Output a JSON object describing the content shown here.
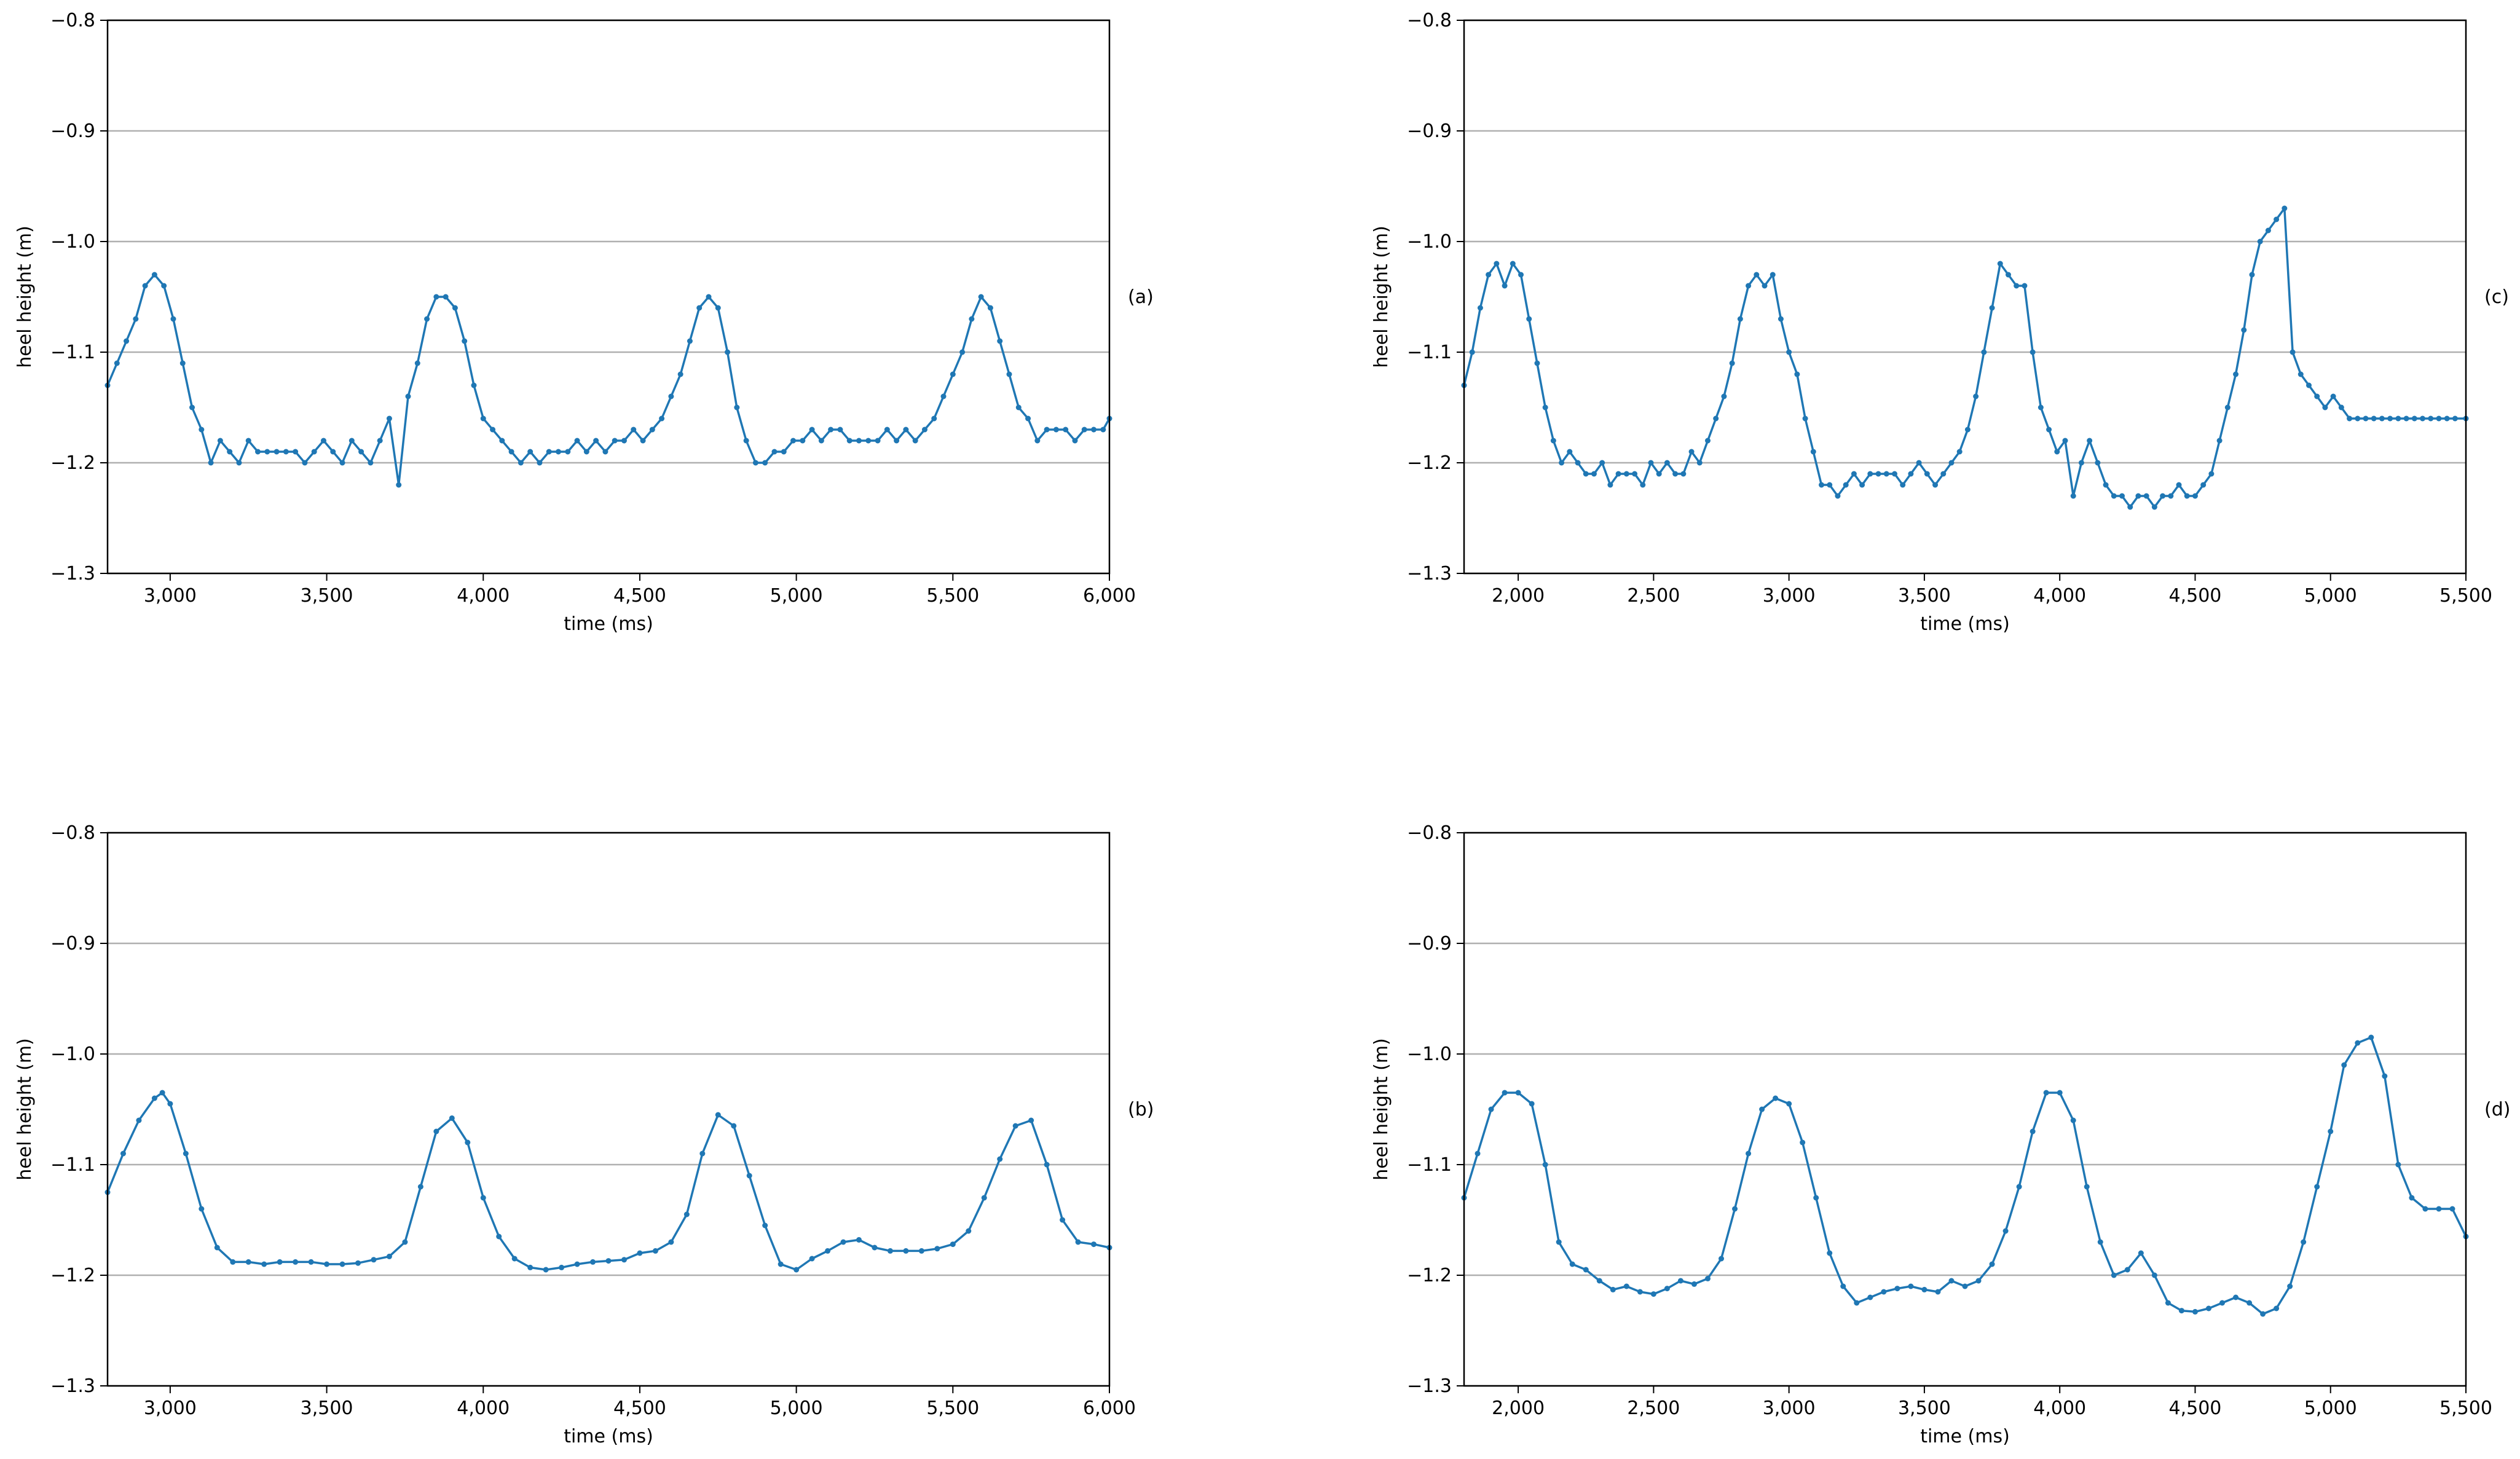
{
  "chart_data": [
    {
      "panel": "(a)",
      "type": "line",
      "xlabel": "time (ms)",
      "ylabel": "heel height (m)",
      "xlim": [
        2800,
        6000
      ],
      "ylim": [
        -1.3,
        -0.8
      ],
      "xticks": [
        3000,
        3500,
        4000,
        4500,
        5000,
        5500,
        6000
      ],
      "xtick_labels": [
        "3,000",
        "3,500",
        "4,000",
        "4,500",
        "5,000",
        "5,500",
        "6,000"
      ],
      "yticks": [
        -1.3,
        -1.2,
        -1.1,
        -1.0,
        -0.9,
        -0.8
      ],
      "ytick_labels": [
        "−1.3",
        "−1.2",
        "−1.1",
        "−1.0",
        "−0.9",
        "−0.8"
      ],
      "grid": "horizontal",
      "markers": true,
      "line_color": "#1f77b4",
      "series": [
        {
          "x": [
            2800,
            2830,
            2860,
            2890,
            2920,
            2950,
            2980,
            3010,
            3040,
            3070,
            3100,
            3130,
            3160,
            3190,
            3220,
            3250,
            3280,
            3310,
            3340,
            3370,
            3400,
            3430,
            3460,
            3490,
            3520,
            3550,
            3580,
            3610,
            3640,
            3670,
            3700,
            3730,
            3760,
            3790,
            3820,
            3850,
            3880,
            3910,
            3940,
            3970,
            4000,
            4030,
            4060,
            4090,
            4120,
            4150,
            4180,
            4210,
            4240,
            4270,
            4300,
            4330,
            4360,
            4390,
            4420,
            4450,
            4480,
            4510,
            4540,
            4570,
            4600,
            4630,
            4660,
            4690,
            4720,
            4750,
            4780,
            4810,
            4840,
            4870,
            4900,
            4930,
            4960,
            4990,
            5020,
            5050,
            5080,
            5110,
            5140,
            5170,
            5200,
            5230,
            5260,
            5290,
            5320,
            5350,
            5380,
            5410,
            5440,
            5470,
            5500,
            5530,
            5560,
            5590,
            5620,
            5650,
            5680,
            5710,
            5740,
            5770,
            5800,
            5830,
            5860,
            5890,
            5920,
            5950,
            5980,
            6000
          ],
          "y": [
            -1.13,
            -1.11,
            -1.09,
            -1.07,
            -1.04,
            -1.03,
            -1.04,
            -1.07,
            -1.11,
            -1.15,
            -1.17,
            -1.2,
            -1.18,
            -1.19,
            -1.2,
            -1.18,
            -1.19,
            -1.19,
            -1.19,
            -1.19,
            -1.19,
            -1.2,
            -1.19,
            -1.18,
            -1.19,
            -1.2,
            -1.18,
            -1.19,
            -1.2,
            -1.18,
            -1.16,
            -1.22,
            -1.14,
            -1.11,
            -1.07,
            -1.05,
            -1.05,
            -1.06,
            -1.09,
            -1.13,
            -1.16,
            -1.17,
            -1.18,
            -1.19,
            -1.2,
            -1.19,
            -1.2,
            -1.19,
            -1.19,
            -1.19,
            -1.18,
            -1.19,
            -1.18,
            -1.19,
            -1.18,
            -1.18,
            -1.17,
            -1.18,
            -1.17,
            -1.16,
            -1.14,
            -1.12,
            -1.09,
            -1.06,
            -1.05,
            -1.06,
            -1.1,
            -1.15,
            -1.18,
            -1.2,
            -1.2,
            -1.19,
            -1.19,
            -1.18,
            -1.18,
            -1.17,
            -1.18,
            -1.17,
            -1.17,
            -1.18,
            -1.18,
            -1.18,
            -1.18,
            -1.17,
            -1.18,
            -1.17,
            -1.18,
            -1.17,
            -1.16,
            -1.14,
            -1.12,
            -1.1,
            -1.07,
            -1.05,
            -1.06,
            -1.09,
            -1.12,
            -1.15,
            -1.16,
            -1.18,
            -1.17,
            -1.17,
            -1.17,
            -1.18,
            -1.17,
            -1.17,
            -1.17,
            -1.16
          ]
        }
      ]
    },
    {
      "panel": "(b)",
      "type": "line",
      "xlabel": "time (ms)",
      "ylabel": "heel height (m)",
      "xlim": [
        2800,
        6000
      ],
      "ylim": [
        -1.3,
        -0.8
      ],
      "xticks": [
        3000,
        3500,
        4000,
        4500,
        5000,
        5500,
        6000
      ],
      "xtick_labels": [
        "3,000",
        "3,500",
        "4,000",
        "4,500",
        "5,000",
        "5,500",
        "6,000"
      ],
      "yticks": [
        -1.3,
        -1.2,
        -1.1,
        -1.0,
        -0.9,
        -0.8
      ],
      "ytick_labels": [
        "−1.3",
        "−1.2",
        "−1.1",
        "−1.0",
        "−0.9",
        "−0.8"
      ],
      "grid": "horizontal",
      "markers": true,
      "line_color": "#1f77b4",
      "series": [
        {
          "x": [
            2800,
            2850,
            2900,
            2950,
            2975,
            3000,
            3050,
            3100,
            3150,
            3200,
            3250,
            3300,
            3350,
            3400,
            3450,
            3500,
            3550,
            3600,
            3650,
            3700,
            3750,
            3800,
            3850,
            3900,
            3950,
            4000,
            4050,
            4100,
            4150,
            4200,
            4250,
            4300,
            4350,
            4400,
            4450,
            4500,
            4550,
            4600,
            4650,
            4700,
            4750,
            4800,
            4850,
            4900,
            4950,
            5000,
            5050,
            5100,
            5150,
            5200,
            5250,
            5300,
            5350,
            5400,
            5450,
            5500,
            5550,
            5600,
            5650,
            5700,
            5750,
            5800,
            5850,
            5900,
            5950,
            6000
          ],
          "y": [
            -1.125,
            -1.09,
            -1.06,
            -1.04,
            -1.035,
            -1.045,
            -1.09,
            -1.14,
            -1.175,
            -1.188,
            -1.188,
            -1.19,
            -1.188,
            -1.188,
            -1.188,
            -1.19,
            -1.19,
            -1.189,
            -1.186,
            -1.183,
            -1.17,
            -1.12,
            -1.07,
            -1.058,
            -1.08,
            -1.13,
            -1.165,
            -1.185,
            -1.193,
            -1.195,
            -1.193,
            -1.19,
            -1.188,
            -1.187,
            -1.186,
            -1.18,
            -1.178,
            -1.17,
            -1.145,
            -1.09,
            -1.055,
            -1.065,
            -1.11,
            -1.155,
            -1.19,
            -1.195,
            -1.185,
            -1.178,
            -1.17,
            -1.168,
            -1.175,
            -1.178,
            -1.178,
            -1.178,
            -1.176,
            -1.172,
            -1.16,
            -1.13,
            -1.095,
            -1.065,
            -1.06,
            -1.1,
            -1.15,
            -1.17,
            -1.172,
            -1.175
          ]
        }
      ]
    },
    {
      "panel": "(c)",
      "type": "line",
      "xlabel": "time (ms)",
      "ylabel": "heel height (m)",
      "xlim": [
        1800,
        5500
      ],
      "ylim": [
        -1.3,
        -0.8
      ],
      "xticks": [
        2000,
        2500,
        3000,
        3500,
        4000,
        4500,
        5000,
        5500
      ],
      "xtick_labels": [
        "2,000",
        "2,500",
        "3,000",
        "3,500",
        "4,000",
        "4,500",
        "5,000",
        "5,500"
      ],
      "yticks": [
        -1.3,
        -1.2,
        -1.1,
        -1.0,
        -0.9,
        -0.8
      ],
      "ytick_labels": [
        "−1.3",
        "−1.2",
        "−1.1",
        "−1.0",
        "−0.9",
        "−0.8"
      ],
      "grid": "horizontal",
      "markers": true,
      "line_color": "#1f77b4",
      "series": [
        {
          "x": [
            1800,
            1830,
            1860,
            1890,
            1920,
            1950,
            1980,
            2010,
            2040,
            2070,
            2100,
            2130,
            2160,
            2190,
            2220,
            2250,
            2280,
            2310,
            2340,
            2370,
            2400,
            2430,
            2460,
            2490,
            2520,
            2550,
            2580,
            2610,
            2640,
            2670,
            2700,
            2730,
            2760,
            2790,
            2820,
            2850,
            2880,
            2910,
            2940,
            2970,
            3000,
            3030,
            3060,
            3090,
            3120,
            3150,
            3180,
            3210,
            3240,
            3270,
            3300,
            3330,
            3360,
            3390,
            3420,
            3450,
            3480,
            3510,
            3540,
            3570,
            3600,
            3630,
            3660,
            3690,
            3720,
            3750,
            3780,
            3810,
            3840,
            3870,
            3900,
            3930,
            3960,
            3990,
            4020,
            4050,
            4080,
            4110,
            4140,
            4170,
            4200,
            4230,
            4260,
            4290,
            4320,
            4350,
            4380,
            4410,
            4440,
            4470,
            4500,
            4530,
            4560,
            4590,
            4620,
            4650,
            4680,
            4710,
            4740,
            4770,
            4800,
            4830,
            4860,
            4890,
            4920,
            4950,
            4980,
            5010,
            5040,
            5070,
            5100,
            5130,
            5160,
            5190,
            5220,
            5250,
            5280,
            5310,
            5340,
            5370,
            5400,
            5430,
            5460,
            5500
          ],
          "y": [
            -1.13,
            -1.1,
            -1.06,
            -1.03,
            -1.02,
            -1.04,
            -1.02,
            -1.03,
            -1.07,
            -1.11,
            -1.15,
            -1.18,
            -1.2,
            -1.19,
            -1.2,
            -1.21,
            -1.21,
            -1.2,
            -1.22,
            -1.21,
            -1.21,
            -1.21,
            -1.22,
            -1.2,
            -1.21,
            -1.2,
            -1.21,
            -1.21,
            -1.19,
            -1.2,
            -1.18,
            -1.16,
            -1.14,
            -1.11,
            -1.07,
            -1.04,
            -1.03,
            -1.04,
            -1.03,
            -1.07,
            -1.1,
            -1.12,
            -1.16,
            -1.19,
            -1.22,
            -1.22,
            -1.23,
            -1.22,
            -1.21,
            -1.22,
            -1.21,
            -1.21,
            -1.21,
            -1.21,
            -1.22,
            -1.21,
            -1.2,
            -1.21,
            -1.22,
            -1.21,
            -1.2,
            -1.19,
            -1.17,
            -1.14,
            -1.1,
            -1.06,
            -1.02,
            -1.03,
            -1.04,
            -1.04,
            -1.1,
            -1.15,
            -1.17,
            -1.19,
            -1.18,
            -1.23,
            -1.2,
            -1.18,
            -1.2,
            -1.22,
            -1.23,
            -1.23,
            -1.24,
            -1.23,
            -1.23,
            -1.24,
            -1.23,
            -1.23,
            -1.22,
            -1.23,
            -1.23,
            -1.22,
            -1.21,
            -1.18,
            -1.15,
            -1.12,
            -1.08,
            -1.03,
            -1.0,
            -0.99,
            -0.98,
            -0.97,
            -1.1,
            -1.12,
            -1.13,
            -1.14,
            -1.15,
            -1.14,
            -1.15,
            -1.16,
            -1.16,
            -1.16,
            -1.16,
            -1.16,
            -1.16,
            -1.16,
            -1.16,
            -1.16,
            -1.16,
            -1.16,
            -1.16,
            -1.16,
            -1.16,
            -1.16
          ]
        }
      ]
    },
    {
      "panel": "(d)",
      "type": "line",
      "xlabel": "time (ms)",
      "ylabel": "heel height (m)",
      "xlim": [
        1800,
        5500
      ],
      "ylim": [
        -1.3,
        -0.8
      ],
      "xticks": [
        2000,
        2500,
        3000,
        3500,
        4000,
        4500,
        5000,
        5500
      ],
      "xtick_labels": [
        "2,000",
        "2,500",
        "3,000",
        "3,500",
        "4,000",
        "4,500",
        "5,000",
        "5,500"
      ],
      "yticks": [
        -1.3,
        -1.2,
        -1.1,
        -1.0,
        -0.9,
        -0.8
      ],
      "ytick_labels": [
        "−1.3",
        "−1.2",
        "−1.1",
        "−1.0",
        "−0.9",
        "−0.8"
      ],
      "grid": "horizontal",
      "markers": true,
      "line_color": "#1f77b4",
      "series": [
        {
          "x": [
            1800,
            1850,
            1900,
            1950,
            2000,
            2050,
            2100,
            2150,
            2200,
            2250,
            2300,
            2350,
            2400,
            2450,
            2500,
            2550,
            2600,
            2650,
            2700,
            2750,
            2800,
            2850,
            2900,
            2950,
            3000,
            3050,
            3100,
            3150,
            3200,
            3250,
            3300,
            3350,
            3400,
            3450,
            3500,
            3550,
            3600,
            3650,
            3700,
            3750,
            3800,
            3850,
            3900,
            3950,
            4000,
            4050,
            4100,
            4150,
            4200,
            4250,
            4300,
            4350,
            4400,
            4450,
            4500,
            4550,
            4600,
            4650,
            4700,
            4750,
            4800,
            4850,
            4900,
            4950,
            5000,
            5050,
            5100,
            5150,
            5200,
            5250,
            5300,
            5350,
            5400,
            5450,
            5500
          ],
          "y": [
            -1.13,
            -1.09,
            -1.05,
            -1.035,
            -1.035,
            -1.045,
            -1.1,
            -1.17,
            -1.19,
            -1.195,
            -1.205,
            -1.213,
            -1.21,
            -1.215,
            -1.217,
            -1.212,
            -1.205,
            -1.208,
            -1.203,
            -1.185,
            -1.14,
            -1.09,
            -1.05,
            -1.04,
            -1.045,
            -1.08,
            -1.13,
            -1.18,
            -1.21,
            -1.225,
            -1.22,
            -1.215,
            -1.212,
            -1.21,
            -1.213,
            -1.215,
            -1.205,
            -1.21,
            -1.205,
            -1.19,
            -1.16,
            -1.12,
            -1.07,
            -1.035,
            -1.035,
            -1.06,
            -1.12,
            -1.17,
            -1.2,
            -1.195,
            -1.18,
            -1.2,
            -1.225,
            -1.232,
            -1.233,
            -1.23,
            -1.225,
            -1.22,
            -1.225,
            -1.235,
            -1.23,
            -1.21,
            -1.17,
            -1.12,
            -1.07,
            -1.01,
            -0.99,
            -0.985,
            -1.02,
            -1.1,
            -1.13,
            -1.14,
            -1.14,
            -1.14,
            -1.165
          ]
        }
      ]
    }
  ]
}
